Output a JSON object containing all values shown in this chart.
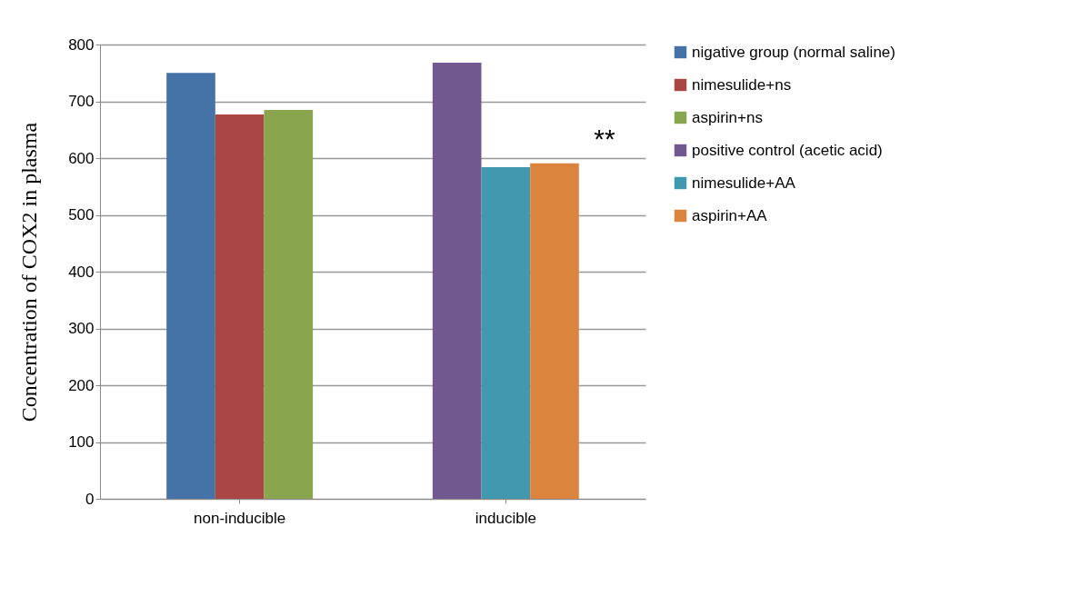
{
  "chart_data": {
    "type": "bar",
    "ylabel": "Concentration of COX2 in plasma",
    "categories": [
      "non-inducible",
      "inducible"
    ],
    "series": [
      {
        "name": "nigative group (normal saline)",
        "color": "#4572a7",
        "values": [
          750,
          null
        ]
      },
      {
        "name": "nimesulide+ns",
        "color": "#aa4643",
        "values": [
          677,
          null
        ]
      },
      {
        "name": "aspirin+ns",
        "color": "#89a54e",
        "values": [
          685,
          null
        ]
      },
      {
        "name": "positive control (acetic acid)",
        "color": "#71588f",
        "values": [
          null,
          768
        ]
      },
      {
        "name": "nimesulide+AA",
        "color": "#4198af",
        "values": [
          null,
          584
        ]
      },
      {
        "name": "aspirin+AA",
        "color": "#db843d",
        "values": [
          null,
          591
        ]
      }
    ],
    "annotations": [
      "**"
    ],
    "ylim": [
      0,
      800
    ],
    "yticks": [
      0,
      100,
      200,
      300,
      400,
      500,
      600,
      700,
      800
    ],
    "grid": "y",
    "legend": "right"
  }
}
